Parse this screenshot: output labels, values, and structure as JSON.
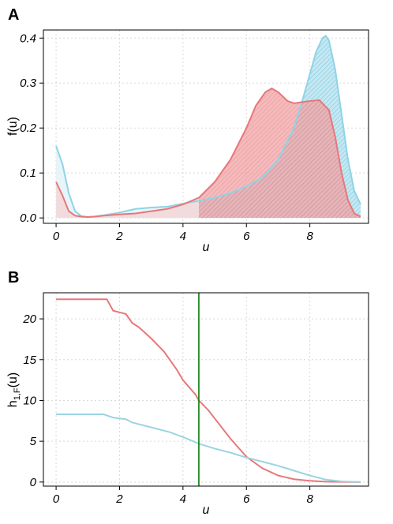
{
  "chart_data": [
    {
      "panel": "A",
      "type": "area",
      "xlabel": "u",
      "ylabel": "f(u)",
      "xlim": [
        -0.4,
        9.85
      ],
      "ylim": [
        -0.012,
        0.418
      ],
      "xticks": [
        0,
        2,
        4,
        6,
        8
      ],
      "yticks": [
        0.0,
        0.1,
        0.2,
        0.3,
        0.4
      ],
      "ytick_labels": [
        "0.0",
        "0.1",
        "0.2",
        "0.3",
        "0.4"
      ],
      "grid": true,
      "shade_split_x": 4.5,
      "series": [
        {
          "color": "#8fd3e6",
          "x": [
            0,
            0.2,
            0.4,
            0.6,
            0.8,
            1.0,
            1.2,
            1.5,
            2.0,
            2.5,
            3.0,
            3.5,
            4.0,
            4.5,
            5.0,
            5.5,
            6.0,
            6.5,
            7.0,
            7.5,
            7.8,
            8.0,
            8.2,
            8.4,
            8.5,
            8.6,
            8.8,
            9.0,
            9.2,
            9.4,
            9.6
          ],
          "y": [
            0.16,
            0.12,
            0.055,
            0.015,
            0.004,
            0.002,
            0.003,
            0.006,
            0.012,
            0.02,
            0.023,
            0.025,
            0.032,
            0.038,
            0.045,
            0.055,
            0.07,
            0.09,
            0.13,
            0.2,
            0.27,
            0.32,
            0.37,
            0.4,
            0.405,
            0.395,
            0.33,
            0.23,
            0.13,
            0.06,
            0.03
          ]
        },
        {
          "color": "#e8777a",
          "x": [
            0,
            0.2,
            0.4,
            0.6,
            0.8,
            1.0,
            1.2,
            1.5,
            2.0,
            2.5,
            3.0,
            3.5,
            4.0,
            4.5,
            5.0,
            5.5,
            6.0,
            6.3,
            6.6,
            6.8,
            7.0,
            7.3,
            7.5,
            8.0,
            8.3,
            8.6,
            8.8,
            9.0,
            9.2,
            9.4,
            9.6
          ],
          "y": [
            0.08,
            0.05,
            0.015,
            0.005,
            0.003,
            0.002,
            0.003,
            0.005,
            0.008,
            0.01,
            0.015,
            0.02,
            0.03,
            0.045,
            0.08,
            0.13,
            0.2,
            0.25,
            0.28,
            0.288,
            0.28,
            0.26,
            0.255,
            0.26,
            0.262,
            0.24,
            0.18,
            0.1,
            0.04,
            0.01,
            0.003
          ]
        }
      ]
    },
    {
      "panel": "B",
      "type": "line",
      "xlabel": "u",
      "ylabel_main": "h",
      "ylabel_sub": "1,F",
      "ylabel_tail": "(u)",
      "xlim": [
        -0.4,
        9.85
      ],
      "ylim": [
        -0.5,
        23.2
      ],
      "xticks": [
        0,
        2,
        4,
        6,
        8
      ],
      "yticks": [
        0,
        5,
        10,
        15,
        20
      ],
      "grid": true,
      "vline_x": 4.5,
      "vline_color": "#0a7a0a",
      "series": [
        {
          "color": "#e8777a",
          "x": [
            0,
            0.5,
            1.0,
            1.5,
            1.6,
            1.8,
            2.0,
            2.2,
            2.4,
            2.6,
            2.8,
            3.0,
            3.2,
            3.4,
            3.6,
            3.8,
            4.0,
            4.2,
            4.4,
            4.5,
            4.8,
            5.0,
            5.5,
            6.0,
            6.5,
            7.0,
            7.5,
            8.0,
            8.5,
            9.0,
            9.6
          ],
          "y": [
            22.4,
            22.4,
            22.4,
            22.4,
            22.4,
            21.0,
            20.8,
            20.6,
            19.5,
            19.0,
            18.3,
            17.6,
            16.8,
            16.0,
            14.9,
            13.8,
            12.5,
            11.6,
            10.7,
            10.0,
            8.8,
            7.8,
            5.3,
            3.1,
            1.7,
            0.8,
            0.35,
            0.15,
            0.05,
            0.02,
            0.0
          ]
        },
        {
          "color": "#9ad4e2",
          "x": [
            0,
            0.5,
            1.0,
            1.5,
            1.8,
            2.0,
            2.2,
            2.4,
            2.6,
            2.8,
            3.0,
            3.2,
            3.4,
            3.6,
            3.8,
            4.0,
            4.2,
            4.5,
            5.0,
            5.5,
            6.0,
            6.5,
            7.0,
            7.5,
            8.0,
            8.5,
            9.0,
            9.6
          ],
          "y": [
            8.3,
            8.3,
            8.3,
            8.3,
            7.9,
            7.8,
            7.7,
            7.3,
            7.1,
            6.9,
            6.7,
            6.5,
            6.3,
            6.1,
            5.8,
            5.5,
            5.2,
            4.7,
            4.1,
            3.6,
            3.0,
            2.5,
            2.0,
            1.4,
            0.8,
            0.3,
            0.08,
            0.0
          ]
        }
      ]
    }
  ]
}
